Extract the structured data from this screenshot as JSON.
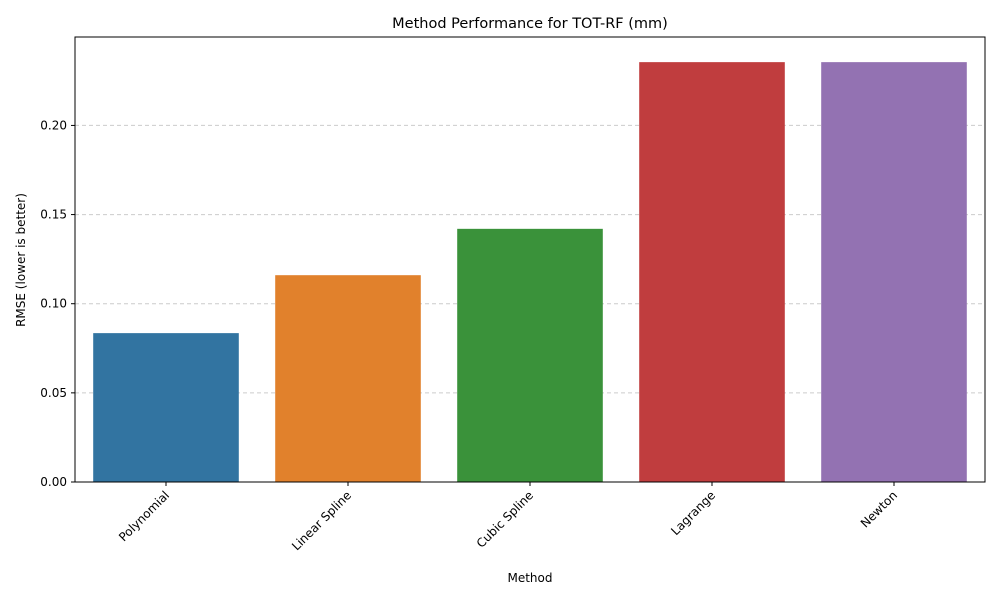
{
  "chart_data": {
    "type": "bar",
    "title": "Method Performance for TOT-RF (mm)",
    "xlabel": "Method",
    "ylabel": "RMSE (lower is better)",
    "categories": [
      "Polynomial",
      "Linear Spline",
      "Cubic Spline",
      "Lagrange",
      "Newton"
    ],
    "values": [
      0.0835,
      0.116,
      0.142,
      0.2355,
      0.2355
    ],
    "colors": [
      "#3274a1",
      "#e1812c",
      "#3a923a",
      "#c03d3e",
      "#9372b2"
    ],
    "ylim": [
      0,
      0.2496
    ],
    "yticks": [
      0.0,
      0.05,
      0.1,
      0.15,
      0.2
    ],
    "ytick_labels": [
      "0.00",
      "0.05",
      "0.10",
      "0.15",
      "0.20"
    ],
    "grid": true,
    "grid_axis": "y"
  }
}
